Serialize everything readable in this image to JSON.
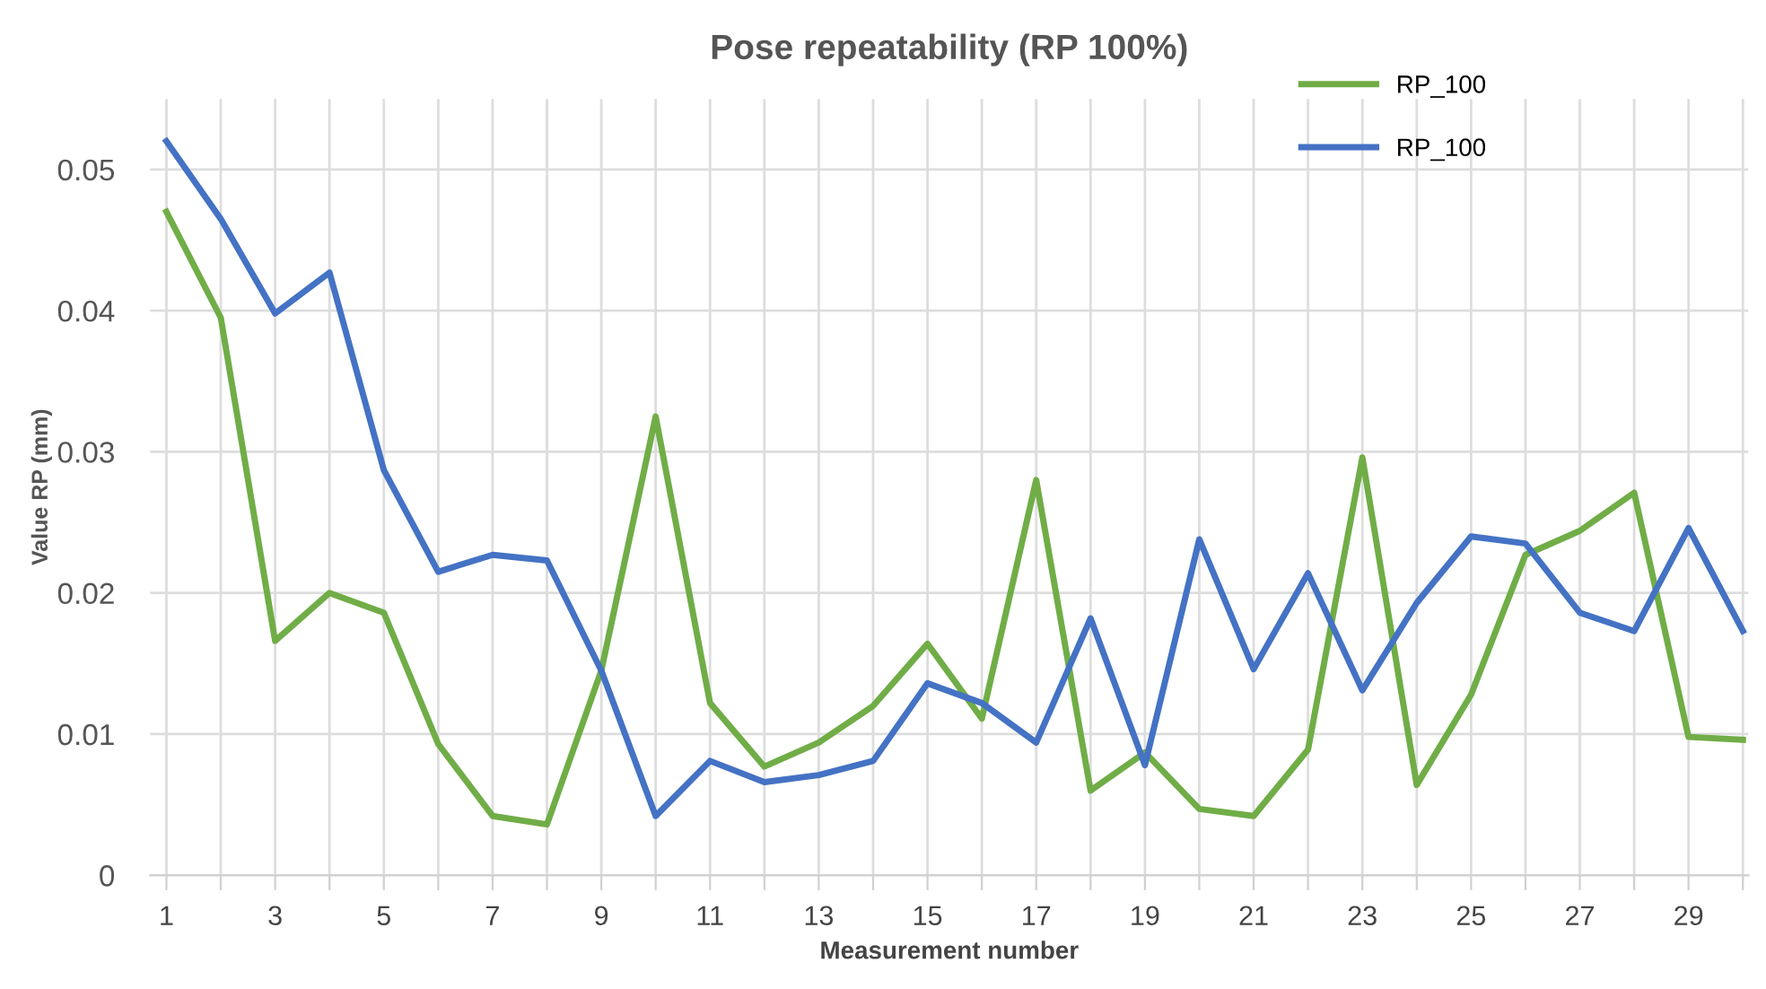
{
  "chart_data": {
    "type": "line",
    "title": "Pose repeatability (RP 100%)",
    "xlabel": "Measurement number",
    "ylabel": "Value RP (mm)",
    "categories": [
      "1",
      null,
      "3",
      null,
      "5",
      null,
      "7",
      null,
      "9",
      null,
      "11",
      null,
      "13",
      null,
      "15",
      null,
      "17",
      null,
      "19",
      null,
      "21",
      null,
      "23",
      null,
      "25",
      null,
      "27",
      null,
      "29",
      null
    ],
    "series": [
      {
        "name": "RP_100",
        "color": "#70ad47",
        "values": [
          0.047,
          0.0395,
          0.0166,
          0.02,
          0.0186,
          0.0093,
          0.0042,
          0.0036,
          0.0145,
          0.0325,
          0.0122,
          0.0077,
          0.0094,
          0.012,
          0.0164,
          0.0111,
          0.028,
          0.006,
          0.0087,
          0.0047,
          0.0042,
          0.0089,
          0.0296,
          0.0064,
          0.0128,
          0.0227,
          0.0244,
          0.0271,
          0.0098,
          0.0096
        ]
      },
      {
        "name": "RP_100",
        "color": "#4472c4",
        "values": [
          0.052,
          0.0465,
          0.0398,
          0.0427,
          0.0287,
          0.0215,
          0.0227,
          0.0223,
          0.0145,
          0.0042,
          0.0081,
          0.0066,
          0.0071,
          0.0081,
          0.0136,
          0.0122,
          0.0094,
          0.0182,
          0.0078,
          0.0238,
          0.0146,
          0.0214,
          0.0131,
          0.0193,
          0.024,
          0.0235,
          0.0186,
          0.0173,
          0.0246,
          0.0173
        ]
      }
    ],
    "ylim": [
      0,
      0.055
    ],
    "yticks": [
      0,
      0.01,
      0.02,
      0.03,
      0.04,
      0.05
    ],
    "grid": true,
    "legend": "top right",
    "marker": "none",
    "line_style": "solid"
  }
}
